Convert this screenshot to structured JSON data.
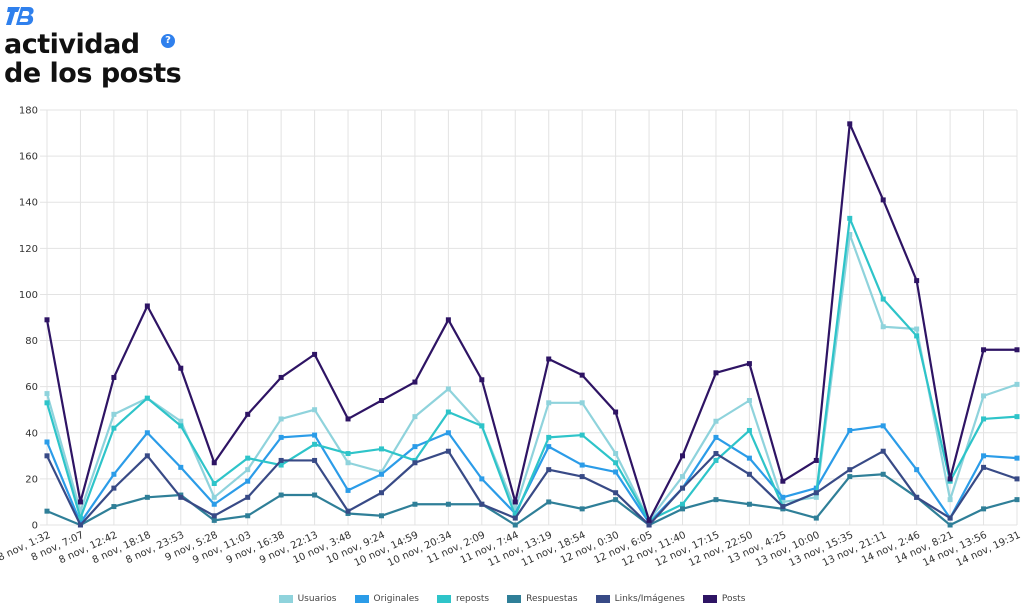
{
  "brand": {
    "logo_text": "TB",
    "logo_color": "#2f80ed"
  },
  "header": {
    "title_line1": "actividad",
    "title_line2": "de los posts",
    "help_glyph": "?"
  },
  "chart_data": {
    "type": "line",
    "ylim": [
      0,
      180
    ],
    "yticks": [
      0,
      20,
      40,
      60,
      80,
      100,
      120,
      140,
      160,
      180
    ],
    "grid": true,
    "legend_position": "bottom-center",
    "categories": [
      "8 nov, 1:32",
      "8 nov, 7:07",
      "8 nov, 12:42",
      "8 nov, 18:18",
      "8 nov, 23:53",
      "9 nov, 5:28",
      "9 nov, 11:03",
      "9 nov, 16:38",
      "9 nov, 22:13",
      "10 nov, 3:48",
      "10 nov, 9:24",
      "10 nov, 14:59",
      "10 nov, 20:34",
      "11 nov, 2:09",
      "11 nov, 7:44",
      "11 nov, 13:19",
      "11 nov, 18:54",
      "12 nov, 0:30",
      "12 nov, 6:05",
      "12 nov, 11:40",
      "12 nov, 17:15",
      "12 nov, 22:50",
      "13 nov, 4:25",
      "13 nov, 10:00",
      "13 nov, 15:35",
      "13 nov, 21:11",
      "14 nov, 2:46",
      "14 nov, 8:21",
      "14 nov, 13:56",
      "14 nov, 19:31"
    ],
    "series": [
      {
        "name": "Usuarios",
        "color": "#8fd3dc",
        "values": [
          57,
          6,
          48,
          55,
          45,
          12,
          24,
          46,
          50,
          27,
          23,
          47,
          59,
          43,
          7,
          53,
          53,
          31,
          2,
          21,
          45,
          54,
          10,
          12,
          126,
          86,
          85,
          11,
          56,
          61
        ]
      },
      {
        "name": "Originales",
        "color": "#2b9ce8",
        "values": [
          36,
          1,
          22,
          40,
          25,
          9,
          19,
          38,
          39,
          15,
          22,
          34,
          40,
          20,
          5,
          34,
          26,
          23,
          1,
          16,
          38,
          29,
          12,
          16,
          41,
          43,
          24,
          3,
          30,
          29
        ]
      },
      {
        "name": "reposts",
        "color": "#2ec4c9",
        "values": [
          53,
          3,
          42,
          55,
          43,
          18,
          29,
          26,
          35,
          31,
          33,
          28,
          49,
          43,
          4,
          38,
          39,
          27,
          2,
          9,
          28,
          41,
          8,
          14,
          133,
          98,
          82,
          19,
          46,
          47
        ]
      },
      {
        "name": "Respuestas",
        "color": "#2f7f98",
        "values": [
          6,
          0,
          8,
          12,
          13,
          2,
          4,
          13,
          13,
          5,
          4,
          9,
          9,
          9,
          0,
          10,
          7,
          11,
          0,
          7,
          11,
          9,
          7,
          3,
          21,
          22,
          12,
          0,
          7,
          11
        ]
      },
      {
        "name": "Links/Imágenes",
        "color": "#384a86",
        "values": [
          30,
          0,
          16,
          30,
          12,
          4,
          12,
          28,
          28,
          6,
          14,
          27,
          32,
          9,
          3,
          24,
          21,
          14,
          0,
          16,
          31,
          22,
          8,
          14,
          24,
          32,
          12,
          3,
          25,
          20
        ]
      },
      {
        "name": "Posts",
        "color": "#2e1464",
        "values": [
          89,
          10,
          64,
          95,
          68,
          27,
          48,
          64,
          74,
          46,
          54,
          62,
          89,
          63,
          10,
          72,
          65,
          49,
          2,
          30,
          66,
          70,
          19,
          28,
          174,
          141,
          106,
          20,
          76,
          76
        ]
      }
    ]
  }
}
